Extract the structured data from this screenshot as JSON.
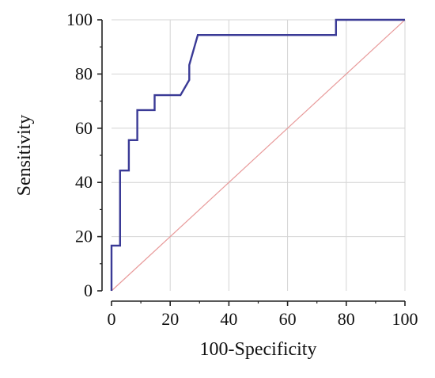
{
  "chart_data": {
    "type": "line",
    "title": "",
    "xlabel": "100-Specificity",
    "ylabel": "Sensitivity",
    "xlim": [
      0,
      100
    ],
    "ylim": [
      0,
      100
    ],
    "x_ticks": [
      "0",
      "20",
      "40",
      "60",
      "80",
      "100"
    ],
    "y_ticks": [
      "0",
      "20",
      "40",
      "60",
      "80",
      "100"
    ],
    "grid": true,
    "series": [
      {
        "color": "#3a3a96",
        "x": [
          0,
          0,
          2.9,
          2.9,
          5.9,
          5.9,
          8.8,
          8.8,
          14.7,
          14.7,
          23.5,
          26.5,
          26.5,
          29.4,
          76.5,
          76.5,
          100
        ],
        "y": [
          0,
          16.7,
          16.7,
          44.4,
          44.4,
          55.6,
          55.6,
          66.7,
          66.7,
          72.2,
          72.2,
          77.8,
          83.3,
          94.4,
          94.4,
          100,
          100
        ]
      },
      {
        "color": "#e89a9a",
        "x": [
          0,
          100
        ],
        "y": [
          0,
          100
        ]
      }
    ]
  }
}
